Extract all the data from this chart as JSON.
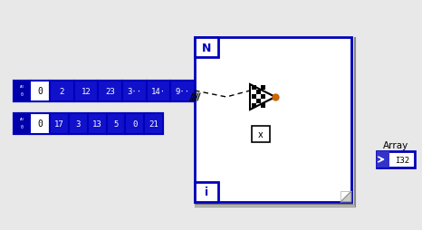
{
  "bg_color": "#e8e8e8",
  "array1_index": "0",
  "array1_values": [
    "2",
    "12",
    "23",
    "3··",
    "14·",
    "9··"
  ],
  "array2_index": "0",
  "array2_values": [
    "17",
    "3",
    "13",
    "5",
    "0",
    "21"
  ],
  "loop_border_color": "#0000bb",
  "array_border_color": "#0000bb",
  "array_fill_color": "#1111cc",
  "index_fill_color": "#0000aa",
  "index_indicator_color": "#4444cc",
  "dashed_line_color": "#000000",
  "orange_dot_color": "#cc6600",
  "n_label": "N",
  "i_label": "i",
  "x_label": "x",
  "array_indicator_label": "Array",
  "array_indicator_value": "I32",
  "arrow_indicator_color": "#3333cc"
}
